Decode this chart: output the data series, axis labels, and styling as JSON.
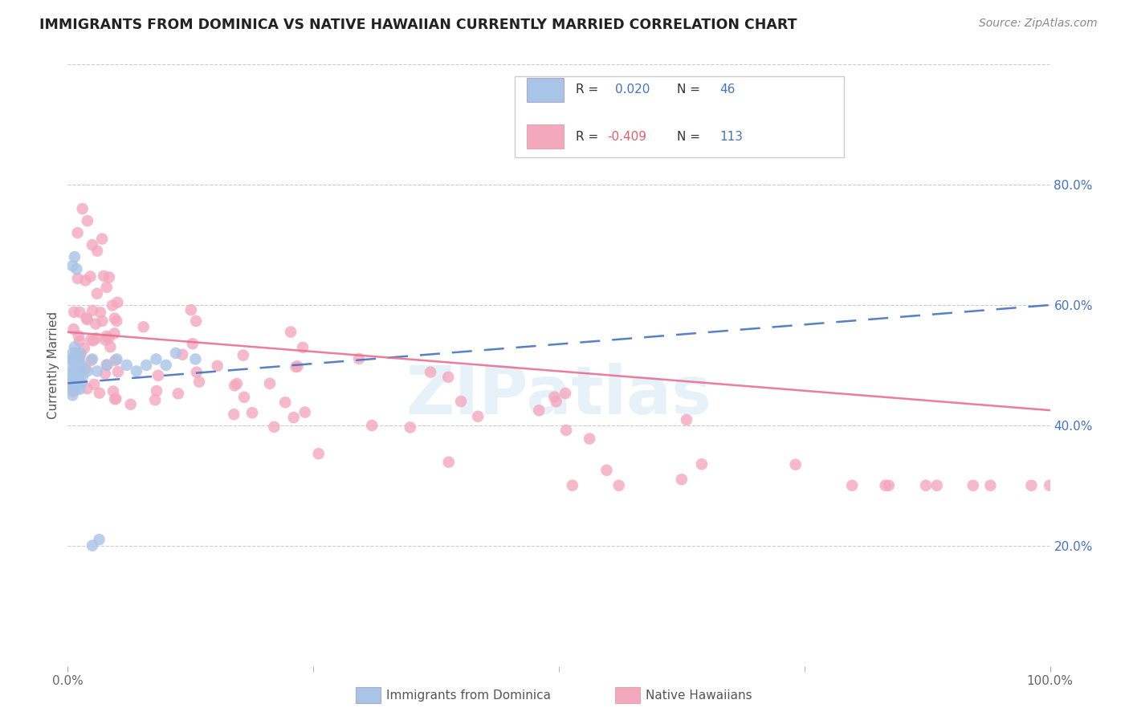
{
  "title": "IMMIGRANTS FROM DOMINICA VS NATIVE HAWAIIAN CURRENTLY MARRIED CORRELATION CHART",
  "source": "Source: ZipAtlas.com",
  "ylabel": "Currently Married",
  "blue_label": "Immigrants from Dominica",
  "pink_label": "Native Hawaiians",
  "blue_color": "#a8c4e6",
  "pink_color": "#f4a8be",
  "blue_line_color": "#4472c4",
  "pink_line_color": "#e87090",
  "watermark": "ZIPatlas",
  "xlim": [
    0.0,
    1.0
  ],
  "ylim": [
    0.0,
    1.0
  ],
  "yticks": [
    0.2,
    0.4,
    0.6,
    0.8
  ],
  "ytick_labels": [
    "20.0%",
    "40.0%",
    "60.0%",
    "80.0%"
  ],
  "blue_line_start_x": 0.0,
  "blue_line_end_x": 1.0,
  "blue_line_start_y": 0.47,
  "blue_line_end_y": 0.6,
  "pink_line_start_x": 0.0,
  "pink_line_end_x": 1.0,
  "pink_line_start_y": 0.555,
  "pink_line_end_y": 0.425
}
